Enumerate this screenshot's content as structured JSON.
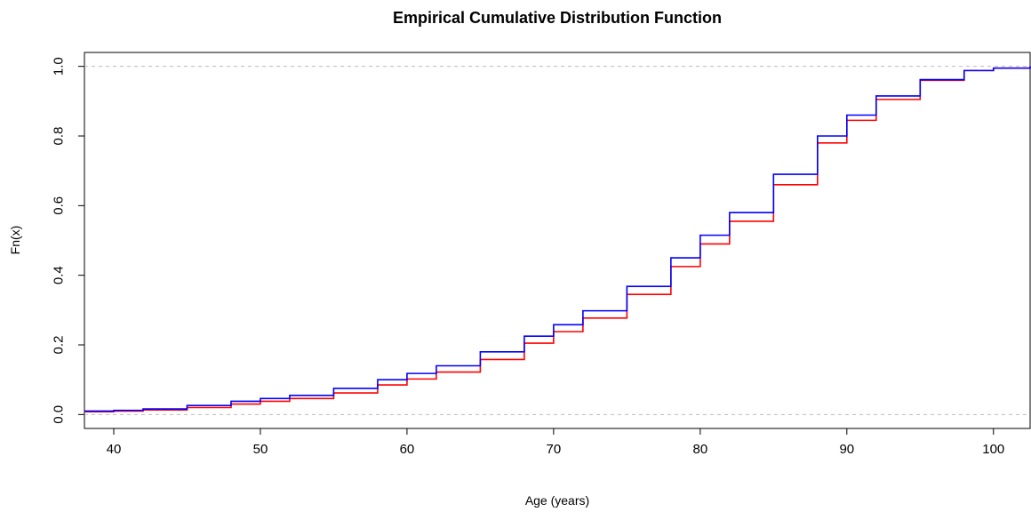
{
  "chart_data": {
    "type": "line",
    "title": "Empirical Cumulative Distribution Function",
    "xlabel": "Age (years)",
    "ylabel": "Fn(x)",
    "xlim": [
      38,
      102.5
    ],
    "ylim": [
      -0.04,
      1.04
    ],
    "x_ticks": [
      "40",
      "50",
      "60",
      "70",
      "80",
      "90",
      "100"
    ],
    "y_ticks": [
      "0.0",
      "0.2",
      "0.4",
      "0.6",
      "0.8",
      "1.0"
    ],
    "reference_lines": [
      0,
      1
    ],
    "grid": false,
    "series": [
      {
        "color": "#ff0000",
        "x": [
          38,
          40,
          42,
          45,
          48,
          50,
          52,
          55,
          58,
          60,
          62,
          65,
          68,
          70,
          72,
          75,
          78,
          80,
          82,
          85,
          88,
          90,
          92,
          95,
          98,
          100,
          102.5
        ],
        "y": [
          0.008,
          0.01,
          0.013,
          0.02,
          0.03,
          0.038,
          0.046,
          0.062,
          0.085,
          0.102,
          0.122,
          0.158,
          0.205,
          0.238,
          0.277,
          0.345,
          0.425,
          0.49,
          0.555,
          0.66,
          0.78,
          0.845,
          0.905,
          0.96,
          0.988,
          0.995,
          1.0
        ]
      },
      {
        "color": "#0000ff",
        "x": [
          38,
          40,
          42,
          45,
          48,
          50,
          52,
          55,
          58,
          60,
          62,
          65,
          68,
          70,
          72,
          75,
          78,
          80,
          82,
          85,
          88,
          90,
          92,
          95,
          98,
          100,
          102.5
        ],
        "y": [
          0.01,
          0.012,
          0.016,
          0.026,
          0.038,
          0.046,
          0.055,
          0.075,
          0.1,
          0.118,
          0.14,
          0.18,
          0.225,
          0.258,
          0.298,
          0.368,
          0.45,
          0.515,
          0.58,
          0.69,
          0.8,
          0.86,
          0.915,
          0.962,
          0.988,
          0.995,
          1.0
        ]
      }
    ]
  }
}
